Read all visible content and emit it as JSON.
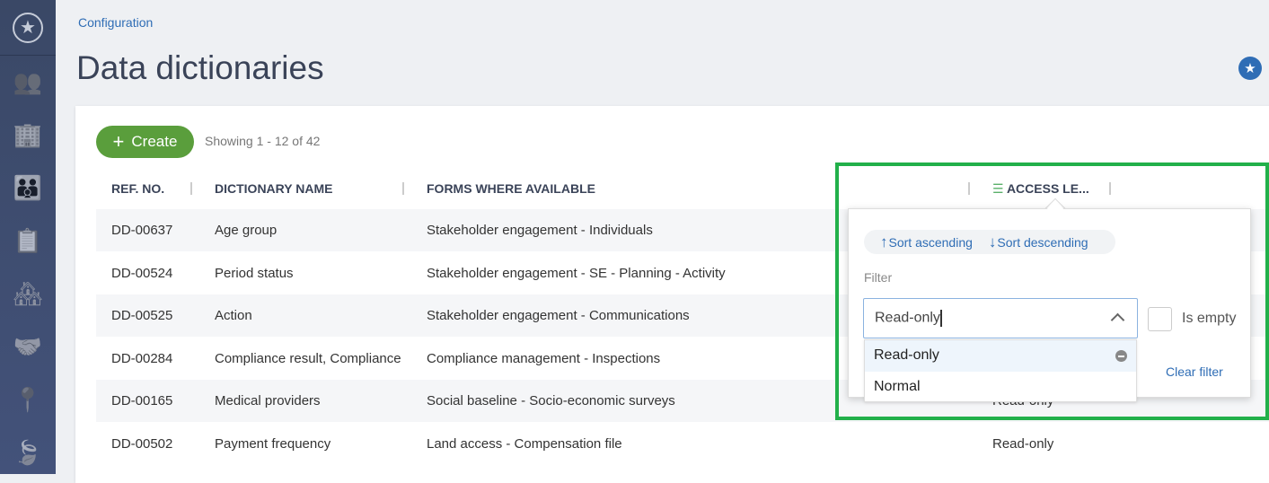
{
  "sidebar": {
    "items": [
      {
        "icon": "favorites-star-icon",
        "glyph": "★"
      },
      {
        "icon": "stakeholders-icon",
        "glyph": "👥"
      },
      {
        "icon": "buildings-tree-icon",
        "glyph": "🏢"
      },
      {
        "icon": "family-icon",
        "glyph": "👪"
      },
      {
        "icon": "checklist-icon",
        "glyph": "📋"
      },
      {
        "icon": "houses-icon",
        "glyph": "🏘"
      },
      {
        "icon": "handshake-icon",
        "glyph": "🤝"
      },
      {
        "icon": "map-pin-icon",
        "glyph": "📍"
      },
      {
        "icon": "environment-icon",
        "glyph": "🍃"
      }
    ]
  },
  "breadcrumb": "Configuration",
  "title": "Data dictionaries",
  "toolbar": {
    "create_label": "Create",
    "showing": "Showing 1 - 12 of 42"
  },
  "table": {
    "columns": [
      "REF. NO.",
      "DICTIONARY NAME",
      "FORMS WHERE AVAILABLE",
      "ACCESS LE..."
    ],
    "rows": [
      [
        "DD-00637",
        "Age group",
        "Stakeholder engagement - Individuals",
        ""
      ],
      [
        "DD-00524",
        "Period status",
        "Stakeholder engagement - SE - Planning - Activity",
        ""
      ],
      [
        "DD-00525",
        "Action",
        "Stakeholder engagement - Communications",
        ""
      ],
      [
        "DD-00284",
        "Compliance result, Compliance",
        "Compliance management - Inspections",
        ""
      ],
      [
        "DD-00165",
        "Medical providers",
        "Social baseline - Socio-economic surveys",
        "Read-only"
      ],
      [
        "DD-00502",
        "Payment frequency",
        "Land access - Compensation file",
        "Read-only"
      ]
    ]
  },
  "filter_popup": {
    "sort_ascending": "Sort ascending",
    "sort_descending": "Sort descending",
    "filter_label": "Filter",
    "filter_value": "Read-only",
    "is_empty_label": "Is empty",
    "is_empty_checked": false,
    "clear_filter": "Clear filter",
    "options": [
      "Read-only",
      "Normal"
    ],
    "selected_option": "Read-only"
  },
  "colors": {
    "accent": "#2f6db5",
    "create": "#5a9e3c",
    "highlight": "#22b04a",
    "sidebar": "#3a4866"
  }
}
